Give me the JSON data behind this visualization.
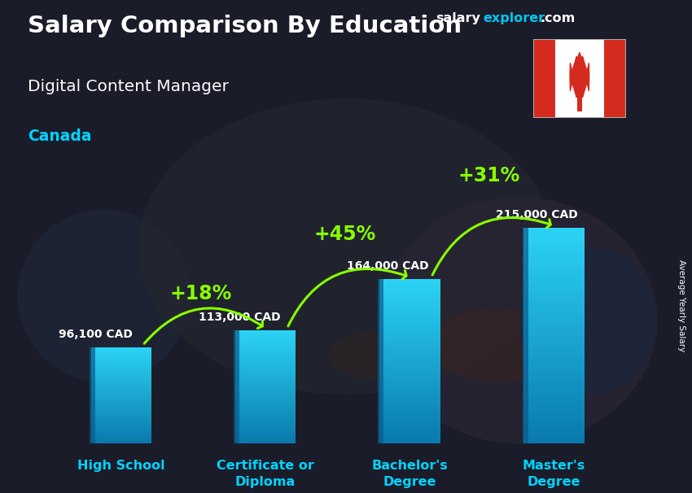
{
  "title1": "Salary Comparison By Education",
  "subtitle": "Digital Content Manager",
  "country": "Canada",
  "ylabel": "Average Yearly Salary",
  "categories": [
    "High School",
    "Certificate or\nDiploma",
    "Bachelor's\nDegree",
    "Master's\nDegree"
  ],
  "values": [
    96100,
    113000,
    164000,
    215000
  ],
  "labels": [
    "96,100 CAD",
    "113,000 CAD",
    "164,000 CAD",
    "215,000 CAD"
  ],
  "pct_labels": [
    "+18%",
    "+45%",
    "+31%"
  ],
  "bar_color_top": "#2cd4f5",
  "bar_color_bottom": "#0a7aad",
  "bg_dark": "#1a1c2e",
  "bg_mid": "#2a3040",
  "title_color": "#ffffff",
  "subtitle_color": "#ffffff",
  "country_color": "#00d4ff",
  "label_color": "#ffffff",
  "pct_color": "#88ff00",
  "arrow_color": "#88ff00",
  "watermark_salary": "#ffffff",
  "watermark_explorer": "#00c8f0",
  "watermark_com": "#ffffff",
  "tick_color": "#00d4ff",
  "ylim": [
    0,
    270000
  ],
  "figsize": [
    8.5,
    6.06
  ],
  "dpi": 100
}
